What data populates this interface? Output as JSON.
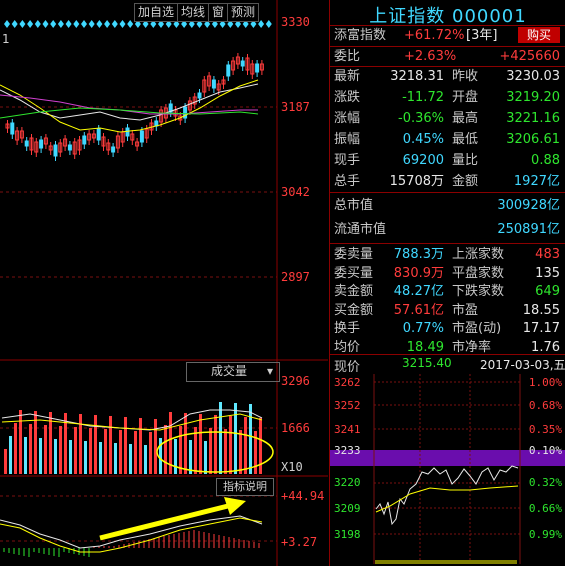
{
  "left": {
    "indicator_num": "1",
    "toolbar": [
      "加自选",
      "均线",
      "窗",
      "预测"
    ],
    "price_axis": [
      "3330",
      "3187",
      "3042",
      "2897"
    ],
    "volume_menu": "成交量",
    "volume_axis": [
      "3296",
      "1666"
    ],
    "volume_unit": "X10",
    "indicator_button": "指标说明",
    "macd_axis": [
      "+44.94",
      "+3.27"
    ]
  },
  "right": {
    "title": "上证指数 000001",
    "tag_row": {
      "label": "添富指数",
      "value": "+61.72%",
      "period": "[3年]",
      "buy": "购买"
    },
    "ratio_row": {
      "label": "委比",
      "value": "+2.63%",
      "value2": "+425660"
    },
    "quote": [
      {
        "k": "最新",
        "v": "3218.31",
        "k2": "昨收",
        "v2": "3230.03"
      },
      {
        "k": "涨跌",
        "v": "-11.72",
        "k2": "开盘",
        "v2": "3219.20"
      },
      {
        "k": "涨幅",
        "v": "-0.36%",
        "k2": "最高",
        "v2": "3221.16"
      },
      {
        "k": "振幅",
        "v": "0.45%",
        "k2": "最低",
        "v2": "3206.61"
      },
      {
        "k": "现手",
        "v": "69200",
        "k2": "量比",
        "v2": "0.88"
      },
      {
        "k": "总手",
        "v": "15708万",
        "k2": "金额",
        "v2": "1927亿"
      }
    ],
    "market_cap": [
      {
        "k": "总市值",
        "v": "300928亿"
      },
      {
        "k": "流通市值",
        "v": "250891亿"
      }
    ],
    "orders": [
      {
        "k": "委卖量",
        "v": "788.3万",
        "k2": "上涨家数",
        "v2": "483"
      },
      {
        "k": "委买量",
        "v": "830.9万",
        "k2": "平盘家数",
        "v2": "135"
      },
      {
        "k": "卖金额",
        "v": "48.27亿",
        "k2": "下跌家数",
        "v2": "649"
      },
      {
        "k": "买金额",
        "v": "57.61亿",
        "k2": "市盈",
        "v2": "18.55"
      },
      {
        "k": "换手",
        "v": "0.77%",
        "k2": "市盈(动)",
        "v2": "17.17"
      },
      {
        "k": "均价",
        "v": "18.49",
        "k2": "市净率",
        "v2": "1.76"
      }
    ],
    "mini": {
      "label": "现价",
      "price": "3215.40",
      "date": "2017-03-03,五",
      "left_axis": [
        "3262",
        "3252",
        "3241",
        "3233",
        "3220",
        "3209",
        "3198"
      ],
      "right_axis": [
        "1.00%",
        "0.68%",
        "0.35%",
        "0.10%",
        "0.32%",
        "0.66%",
        "0.99%"
      ]
    }
  },
  "colors": {
    "up": "#ff3c3c",
    "down": "#2ee62e",
    "accent": "#40d8ff",
    "frame": "#8b0000",
    "highlight": "#6a0dad"
  }
}
